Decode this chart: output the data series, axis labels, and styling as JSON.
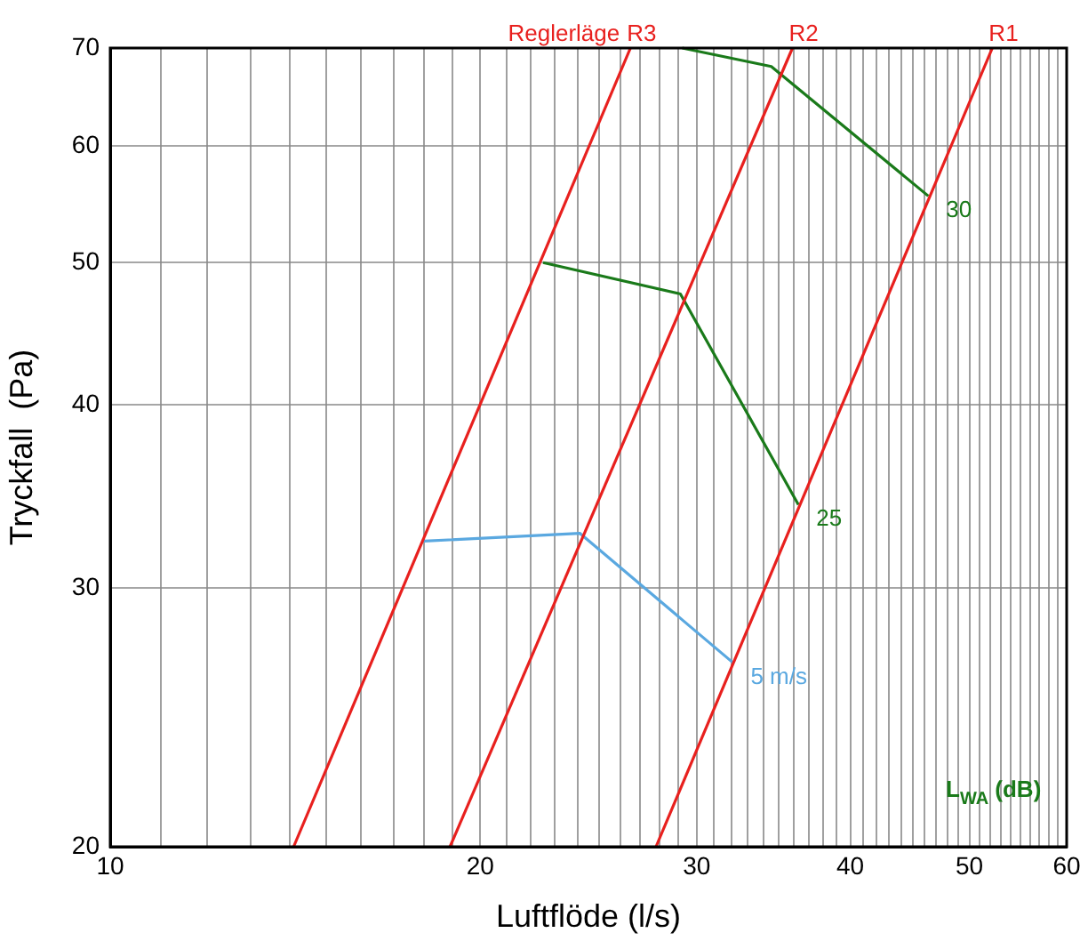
{
  "chart_data": {
    "type": "line",
    "xlabel": "Luftflöde (l/s)",
    "ylabel": "Tryckfall  (Pa)",
    "log": "xy",
    "grid": true,
    "xlim": [
      10,
      60
    ],
    "ylim": [
      20,
      70
    ],
    "xticks": [
      10,
      {
        "value": 11,
        "label": null
      },
      {
        "value": 12,
        "label": null
      },
      {
        "value": 13,
        "label": null
      },
      {
        "value": 14,
        "label": null
      },
      {
        "value": 15,
        "label": null
      },
      {
        "value": 16,
        "label": null
      },
      {
        "value": 17,
        "label": null
      },
      {
        "value": 18,
        "label": null
      },
      {
        "value": 19,
        "label": null
      },
      20,
      {
        "value": 21,
        "label": null
      },
      {
        "value": 22,
        "label": null
      },
      {
        "value": 23,
        "label": null
      },
      {
        "value": 24,
        "label": null
      },
      {
        "value": 25,
        "label": null
      },
      {
        "value": 26,
        "label": null
      },
      {
        "value": 27,
        "label": null
      },
      {
        "value": 28,
        "label": null
      },
      {
        "value": 29,
        "label": null
      },
      30,
      {
        "value": 31,
        "label": null
      },
      {
        "value": 32,
        "label": null
      },
      {
        "value": 33,
        "label": null
      },
      {
        "value": 34,
        "label": null
      },
      {
        "value": 35,
        "label": null
      },
      {
        "value": 36,
        "label": null
      },
      {
        "value": 37,
        "label": null
      },
      {
        "value": 38,
        "label": null
      },
      {
        "value": 39,
        "label": null
      },
      40,
      {
        "value": 41,
        "label": null
      },
      {
        "value": 42,
        "label": null
      },
      {
        "value": 43,
        "label": null
      },
      {
        "value": 44,
        "label": null
      },
      {
        "value": 45,
        "label": null
      },
      {
        "value": 46,
        "label": null
      },
      {
        "value": 47,
        "label": null
      },
      {
        "value": 48,
        "label": null
      },
      {
        "value": 49,
        "label": null
      },
      50,
      {
        "value": 51,
        "label": null
      },
      {
        "value": 52,
        "label": null
      },
      {
        "value": 53,
        "label": null
      },
      {
        "value": 54,
        "label": null
      },
      {
        "value": 55,
        "label": null
      },
      {
        "value": 56,
        "label": null
      },
      {
        "value": 57,
        "label": null
      },
      {
        "value": 58,
        "label": null
      },
      {
        "value": 59,
        "label": null
      },
      60
    ],
    "yticks": [
      20,
      30,
      40,
      50,
      60,
      70
    ],
    "series": [
      {
        "name": "R3",
        "color": "#e8201e",
        "x": [
          14.1,
          26.5
        ],
        "values": [
          20,
          70
        ]
      },
      {
        "name": "R2",
        "color": "#e8201e",
        "x": [
          18.9,
          35.9
        ],
        "values": [
          20,
          70
        ]
      },
      {
        "name": "R1",
        "color": "#e8201e",
        "x": [
          27.8,
          52.2
        ],
        "values": [
          20,
          70
        ]
      },
      {
        "name": "30",
        "color": "#1a7a1a",
        "x": [
          29.2,
          34.5,
          46.3
        ],
        "values": [
          70,
          68,
          55.5
        ]
      },
      {
        "name": "25",
        "color": "#1a7a1a",
        "x": [
          22.5,
          29.1,
          36.3
        ],
        "values": [
          50,
          47.6,
          34.2
        ]
      },
      {
        "name": "5 m/s",
        "color": "#5aa8e0",
        "x": [
          18,
          24.1,
          32.1
        ],
        "values": [
          32.3,
          32.7,
          26.7
        ]
      }
    ],
    "annotations": [
      "Reglerläge",
      "L$_{WA}$ (dB)"
    ]
  }
}
